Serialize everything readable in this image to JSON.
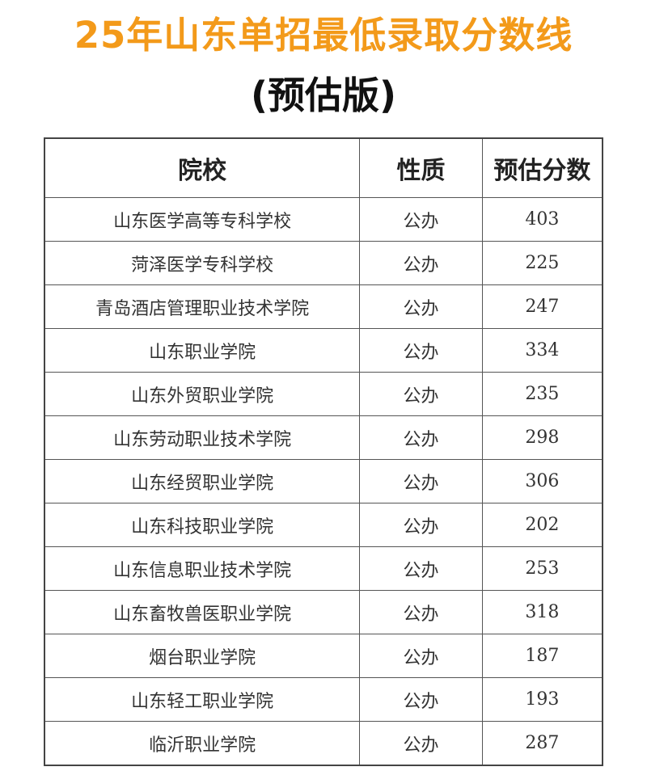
{
  "title": "25年山东单招最低录取分数线",
  "subtitle": "(预估版)",
  "accent_color": "#f39a1a",
  "table": {
    "headers": [
      "院校",
      "性质",
      "预估分数"
    ],
    "rows": [
      [
        "山东医学高等专科学校",
        "公办",
        "403"
      ],
      [
        "菏泽医学专科学校",
        "公办",
        "225"
      ],
      [
        "青岛酒店管理职业技术学院",
        "公办",
        "247"
      ],
      [
        "山东职业学院",
        "公办",
        "334"
      ],
      [
        "山东外贸职业学院",
        "公办",
        "235"
      ],
      [
        "山东劳动职业技术学院",
        "公办",
        "298"
      ],
      [
        "山东经贸职业学院",
        "公办",
        "306"
      ],
      [
        "山东科技职业学院",
        "公办",
        "202"
      ],
      [
        "山东信息职业技术学院",
        "公办",
        "253"
      ],
      [
        "山东畜牧兽医职业学院",
        "公办",
        "318"
      ],
      [
        "烟台职业学院",
        "公办",
        "187"
      ],
      [
        "山东轻工职业学院",
        "公办",
        "193"
      ],
      [
        "临沂职业学院",
        "公办",
        "287"
      ]
    ]
  }
}
